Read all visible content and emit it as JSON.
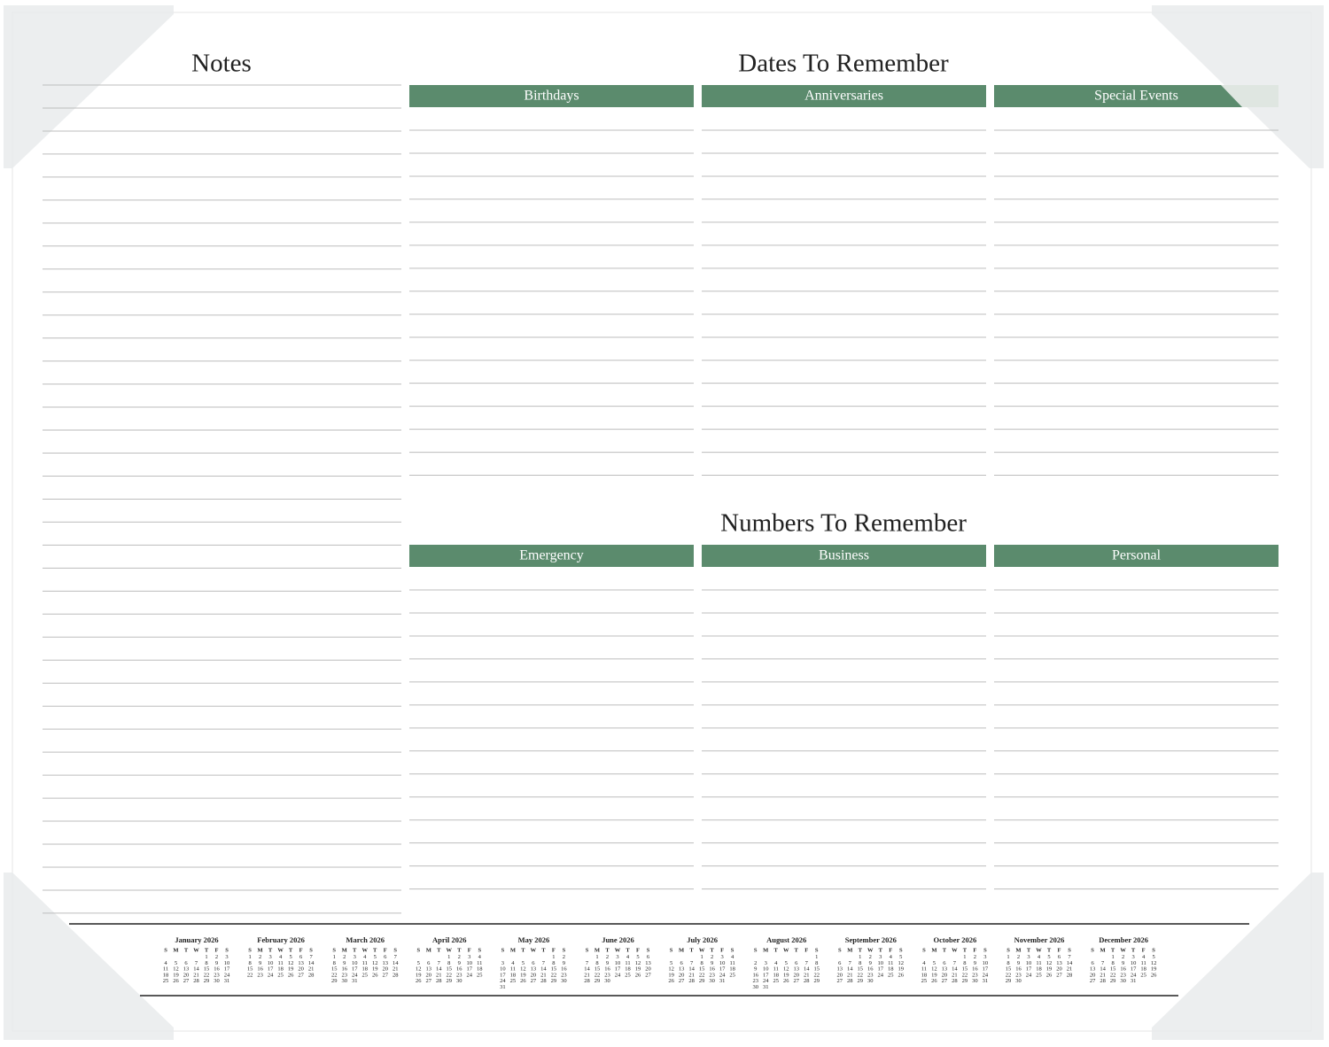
{
  "notes": {
    "title": "Notes"
  },
  "dates_to_remember": {
    "title": "Dates To Remember",
    "columns": [
      "Birthdays",
      "Anniversaries",
      "Special Events"
    ]
  },
  "numbers_to_remember": {
    "title": "Numbers To Remember",
    "columns": [
      "Emergency",
      "Business",
      "Personal"
    ]
  },
  "calendar": {
    "weekdays": [
      "S",
      "M",
      "T",
      "W",
      "T",
      "F",
      "S"
    ],
    "months": [
      {
        "name": "January 2026",
        "weeks": [
          [
            null,
            null,
            null,
            null,
            1,
            2,
            3
          ],
          [
            4,
            5,
            6,
            7,
            8,
            9,
            10
          ],
          [
            11,
            12,
            13,
            14,
            15,
            16,
            17
          ],
          [
            18,
            19,
            20,
            21,
            22,
            23,
            24
          ],
          [
            25,
            26,
            27,
            28,
            29,
            30,
            31
          ]
        ]
      },
      {
        "name": "February 2026",
        "weeks": [
          [
            1,
            2,
            3,
            4,
            5,
            6,
            7
          ],
          [
            8,
            9,
            10,
            11,
            12,
            13,
            14
          ],
          [
            15,
            16,
            17,
            18,
            19,
            20,
            21
          ],
          [
            22,
            23,
            24,
            25,
            26,
            27,
            28
          ]
        ]
      },
      {
        "name": "March 2026",
        "weeks": [
          [
            1,
            2,
            3,
            4,
            5,
            6,
            7
          ],
          [
            8,
            9,
            10,
            11,
            12,
            13,
            14
          ],
          [
            15,
            16,
            17,
            18,
            19,
            20,
            21
          ],
          [
            22,
            23,
            24,
            25,
            26,
            27,
            28
          ],
          [
            29,
            30,
            31
          ]
        ]
      },
      {
        "name": "April 2026",
        "weeks": [
          [
            null,
            null,
            null,
            1,
            2,
            3,
            4
          ],
          [
            5,
            6,
            7,
            8,
            9,
            10,
            11
          ],
          [
            12,
            13,
            14,
            15,
            16,
            17,
            18
          ],
          [
            19,
            20,
            21,
            22,
            23,
            24,
            25
          ],
          [
            26,
            27,
            28,
            29,
            30
          ]
        ]
      },
      {
        "name": "May 2026",
        "weeks": [
          [
            null,
            null,
            null,
            null,
            null,
            1,
            2
          ],
          [
            3,
            4,
            5,
            6,
            7,
            8,
            9
          ],
          [
            10,
            11,
            12,
            13,
            14,
            15,
            16
          ],
          [
            17,
            18,
            19,
            20,
            21,
            22,
            23
          ],
          [
            24,
            25,
            26,
            27,
            28,
            29,
            30
          ],
          [
            31
          ]
        ]
      },
      {
        "name": "June 2026",
        "weeks": [
          [
            null,
            1,
            2,
            3,
            4,
            5,
            6
          ],
          [
            7,
            8,
            9,
            10,
            11,
            12,
            13
          ],
          [
            14,
            15,
            16,
            17,
            18,
            19,
            20
          ],
          [
            21,
            22,
            23,
            24,
            25,
            26,
            27
          ],
          [
            28,
            29,
            30
          ]
        ]
      },
      {
        "name": "July 2026",
        "weeks": [
          [
            null,
            null,
            null,
            1,
            2,
            3,
            4
          ],
          [
            5,
            6,
            7,
            8,
            9,
            10,
            11
          ],
          [
            12,
            13,
            14,
            15,
            16,
            17,
            18
          ],
          [
            19,
            20,
            21,
            22,
            23,
            24,
            25
          ],
          [
            26,
            27,
            28,
            29,
            30,
            31
          ]
        ]
      },
      {
        "name": "August 2026",
        "weeks": [
          [
            null,
            null,
            null,
            null,
            null,
            null,
            1
          ],
          [
            2,
            3,
            4,
            5,
            6,
            7,
            8
          ],
          [
            9,
            10,
            11,
            12,
            13,
            14,
            15
          ],
          [
            16,
            17,
            18,
            19,
            20,
            21,
            22
          ],
          [
            23,
            24,
            25,
            26,
            27,
            28,
            29
          ],
          [
            30,
            31
          ]
        ]
      },
      {
        "name": "September 2026",
        "weeks": [
          [
            null,
            null,
            1,
            2,
            3,
            4,
            5
          ],
          [
            6,
            7,
            8,
            9,
            10,
            11,
            12
          ],
          [
            13,
            14,
            15,
            16,
            17,
            18,
            19
          ],
          [
            20,
            21,
            22,
            23,
            24,
            25,
            26
          ],
          [
            27,
            28,
            29,
            30
          ]
        ]
      },
      {
        "name": "October 2026",
        "weeks": [
          [
            null,
            null,
            null,
            null,
            1,
            2,
            3
          ],
          [
            4,
            5,
            6,
            7,
            8,
            9,
            10
          ],
          [
            11,
            12,
            13,
            14,
            15,
            16,
            17
          ],
          [
            18,
            19,
            20,
            21,
            22,
            23,
            24
          ],
          [
            25,
            26,
            27,
            28,
            29,
            30,
            31
          ]
        ]
      },
      {
        "name": "November 2026",
        "weeks": [
          [
            1,
            2,
            3,
            4,
            5,
            6,
            7
          ],
          [
            8,
            9,
            10,
            11,
            12,
            13,
            14
          ],
          [
            15,
            16,
            17,
            18,
            19,
            20,
            21
          ],
          [
            22,
            23,
            24,
            25,
            26,
            27,
            28
          ],
          [
            29,
            30
          ]
        ]
      },
      {
        "name": "December 2026",
        "weeks": [
          [
            null,
            null,
            1,
            2,
            3,
            4,
            5
          ],
          [
            6,
            7,
            8,
            9,
            10,
            11,
            12
          ],
          [
            13,
            14,
            15,
            16,
            17,
            18,
            19
          ],
          [
            20,
            21,
            22,
            23,
            24,
            25,
            26
          ],
          [
            27,
            28,
            29,
            30,
            31
          ]
        ]
      }
    ]
  }
}
